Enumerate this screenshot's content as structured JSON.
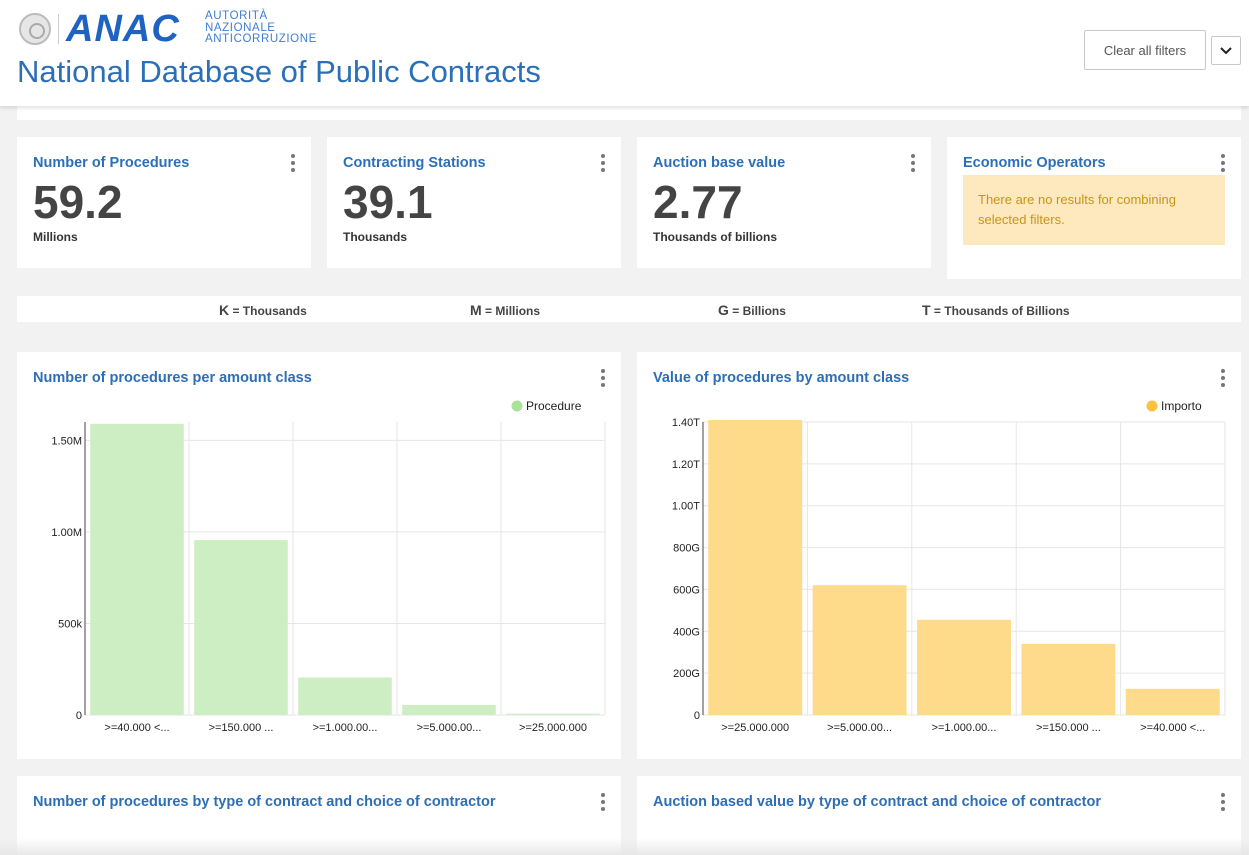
{
  "header": {
    "logo_mark": "ANAC",
    "logo_lines": [
      "AUTORITÀ",
      "NAZIONALE",
      "ANTICORRUZIONE"
    ],
    "title": "National Database of Public Contracts",
    "clear_filters_label": "Clear all filters"
  },
  "kpis": [
    {
      "title": "Number of Procedures",
      "value": "59.2",
      "unit": "Millions"
    },
    {
      "title": "Contracting Stations",
      "value": "39.1",
      "unit": "Thousands"
    },
    {
      "title": "Auction base value",
      "value": "2.77",
      "unit": "Thousands of billions"
    },
    {
      "title": "Economic Operators",
      "message": "There are no results for combining selected filters."
    }
  ],
  "unit_legend": [
    {
      "symbol": "K",
      "meaning": "= Thousands"
    },
    {
      "symbol": "M",
      "meaning": "= Millions"
    },
    {
      "symbol": "G",
      "meaning": "= Billions"
    },
    {
      "symbol": "T",
      "meaning": "= Thousands of Billions"
    }
  ],
  "charts": {
    "procedures_title": "Number of procedures per amount class",
    "value_title": "Value of procedures by amount class",
    "type_title": "Number of procedures by type of contract and choice of contractor",
    "auction_type_title": "Auction based value by type of contract and choice of contractor"
  },
  "colors": {
    "procedure": "#cdeec2",
    "procedure_legend": "#a9e29a",
    "importo": "#fedb8b",
    "importo_legend": "#fcc13d",
    "title_blue": "#2c6fb7"
  },
  "chart_data": [
    {
      "type": "bar",
      "title": "Number of procedures per amount class",
      "categories": [
        ">=40.000 <...",
        ">=150.000 ...",
        ">=1.000.00...",
        ">=5.000.00...",
        ">=25.000.000"
      ],
      "series": [
        {
          "name": "Procedure",
          "values": [
            1590000,
            955000,
            205000,
            55000,
            7000
          ]
        }
      ],
      "ylim": [
        0,
        1600000
      ],
      "yticks": [
        {
          "v": 0,
          "label": "0"
        },
        {
          "v": 500000,
          "label": "500k"
        },
        {
          "v": 1000000,
          "label": "1.00M"
        },
        {
          "v": 1500000,
          "label": "1.50M"
        }
      ],
      "legend": "top-right"
    },
    {
      "type": "bar",
      "title": "Value of procedures by amount class",
      "categories": [
        ">=25.000.000",
        ">=5.000.00...",
        ">=1.000.00...",
        ">=150.000 ...",
        ">=40.000 <..."
      ],
      "series": [
        {
          "name": "Importo",
          "values": [
            1410,
            620,
            455,
            340,
            125
          ]
        }
      ],
      "ylim": [
        0,
        1400
      ],
      "yticks": [
        {
          "v": 0,
          "label": "0"
        },
        {
          "v": 200,
          "label": "200G"
        },
        {
          "v": 400,
          "label": "400G"
        },
        {
          "v": 600,
          "label": "600G"
        },
        {
          "v": 800,
          "label": "800G"
        },
        {
          "v": 1000,
          "label": "1.00T"
        },
        {
          "v": 1200,
          "label": "1.20T"
        },
        {
          "v": 1400,
          "label": "1.40T"
        }
      ],
      "legend": "top-right"
    }
  ]
}
